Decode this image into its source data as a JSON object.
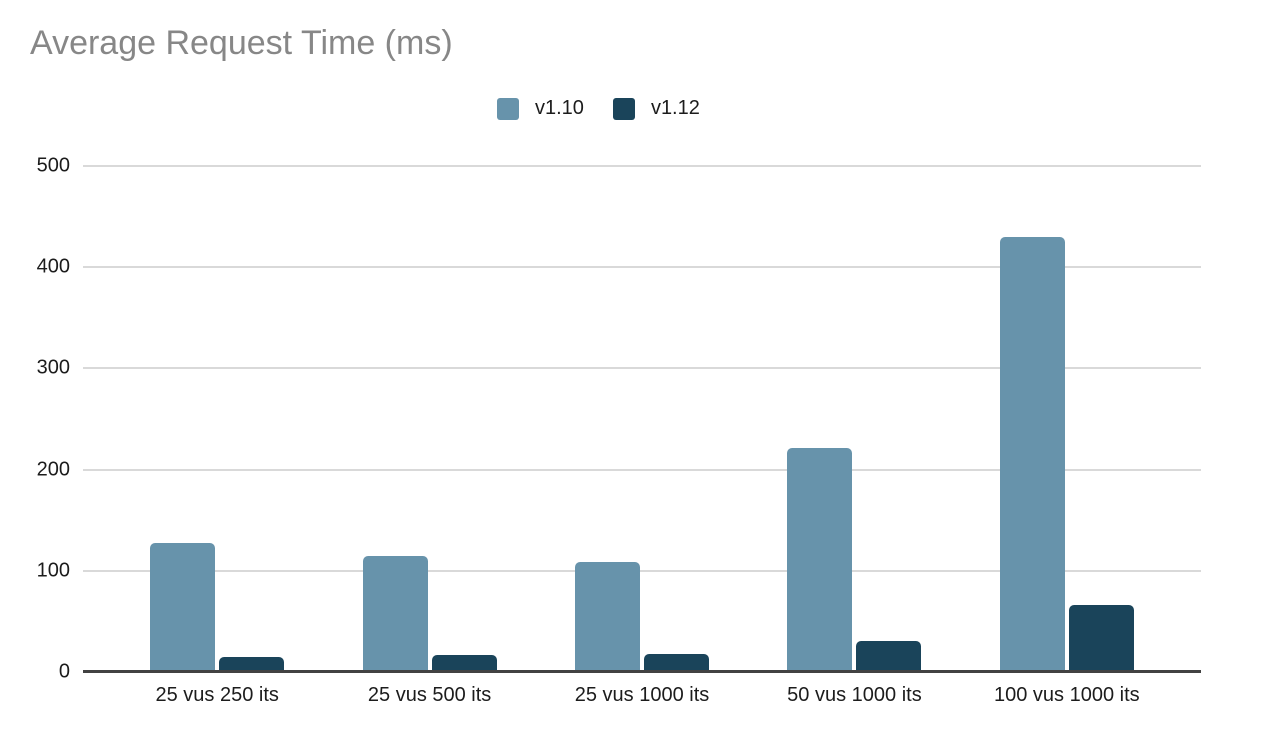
{
  "chart_data": {
    "type": "bar",
    "title": "Average Request Time (ms)",
    "xlabel": "",
    "ylabel": "",
    "categories": [
      "25 vus 250 its",
      "25 vus 500 its",
      "25 vus 1000 its",
      "50 vus 1000 its",
      "100 vus 1000 its"
    ],
    "series": [
      {
        "name": "v1.10",
        "color": "#6793ab",
        "values": [
          127,
          115,
          109,
          221,
          430
        ]
      },
      {
        "name": "v1.12",
        "color": "#1a445a",
        "values": [
          15,
          17,
          18,
          31,
          66
        ]
      }
    ],
    "ylim": [
      0,
      500
    ],
    "yticks": [
      0,
      100,
      200,
      300,
      400,
      500
    ],
    "grid": true,
    "legend_position": "top",
    "colors": {
      "title_text": "#878787",
      "axis_text": "#1c1c1c",
      "gridline": "#d9d9d9",
      "axis_line": "#424242",
      "background": "#ffffff"
    }
  }
}
